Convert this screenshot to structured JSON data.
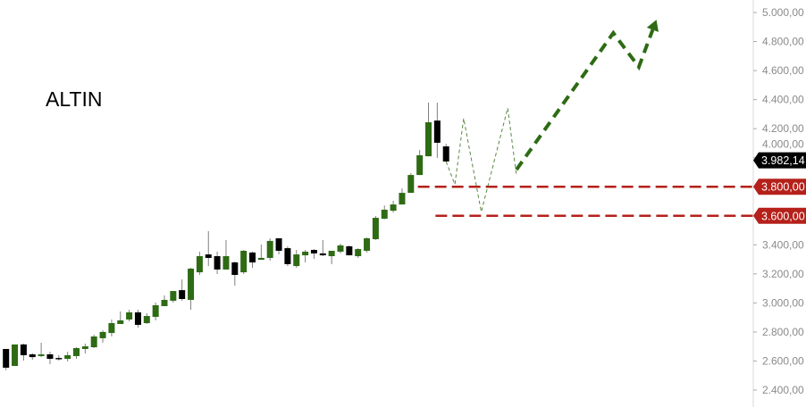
{
  "chart_data": {
    "type": "candlestick",
    "title": "ALTIN",
    "xlabel": "",
    "ylabel": "",
    "ylim": [
      2400,
      5000
    ],
    "y_ticks": [
      "2.400,00",
      "2.600,00",
      "2.800,00",
      "3.000,00",
      "3.200,00",
      "3.400,00",
      "3.600,00",
      "3.800,00",
      "4.000,00",
      "4.200,00",
      "4.400,00",
      "4.600,00",
      "4.800,00",
      "5.000,00"
    ],
    "y_tick_values": [
      2400,
      2600,
      2800,
      3000,
      3200,
      3400,
      3600,
      3800,
      4000,
      4200,
      4400,
      4600,
      4800,
      5000
    ],
    "grid": false,
    "colors": {
      "up": "#2e6b14",
      "down": "#000000",
      "wick": "#808080",
      "level": "#b5201a",
      "last": "#000000",
      "projection": "#2e6b14"
    },
    "candles": [
      [
        2683,
        2683,
        2537,
        2554
      ],
      [
        2566,
        2714,
        2566,
        2714
      ],
      [
        2714,
        2720,
        2603,
        2640
      ],
      [
        2646,
        2654,
        2609,
        2627
      ],
      [
        2634,
        2726,
        2627,
        2646
      ],
      [
        2646,
        2664,
        2578,
        2615
      ],
      [
        2621,
        2640,
        2603,
        2615
      ],
      [
        2615,
        2664,
        2597,
        2640
      ],
      [
        2634,
        2695,
        2615,
        2689
      ],
      [
        2683,
        2720,
        2652,
        2701
      ],
      [
        2695,
        2781,
        2689,
        2769
      ],
      [
        2757,
        2812,
        2726,
        2800
      ],
      [
        2793,
        2886,
        2769,
        2861
      ],
      [
        2855,
        2941,
        2855,
        2880
      ],
      [
        2886,
        2953,
        2873,
        2935
      ],
      [
        2935,
        2953,
        2830,
        2849
      ],
      [
        2861,
        2929,
        2855,
        2910
      ],
      [
        2904,
        3002,
        2880,
        2984
      ],
      [
        2978,
        3052,
        2978,
        3021
      ],
      [
        3015,
        3082,
        3002,
        3082
      ],
      [
        3088,
        3162,
        3015,
        3027
      ],
      [
        3021,
        3242,
        2953,
        3236
      ],
      [
        3211,
        3353,
        3193,
        3322
      ],
      [
        3334,
        3494,
        3254,
        3310
      ],
      [
        3322,
        3353,
        3199,
        3230
      ],
      [
        3230,
        3433,
        3230,
        3322
      ],
      [
        3279,
        3285,
        3119,
        3193
      ],
      [
        3211,
        3365,
        3199,
        3359
      ],
      [
        3347,
        3353,
        3242,
        3279
      ],
      [
        3297,
        3402,
        3297,
        3310
      ],
      [
        3310,
        3445,
        3291,
        3427
      ],
      [
        3445,
        3445,
        3334,
        3359
      ],
      [
        3377,
        3390,
        3254,
        3267
      ],
      [
        3254,
        3365,
        3242,
        3334
      ],
      [
        3328,
        3365,
        3279,
        3353
      ],
      [
        3365,
        3371,
        3304,
        3341
      ],
      [
        3341,
        3433,
        3322,
        3328
      ],
      [
        3322,
        3359,
        3267,
        3359
      ],
      [
        3353,
        3408,
        3341,
        3396
      ],
      [
        3390,
        3396,
        3328,
        3328
      ],
      [
        3322,
        3377,
        3310,
        3371
      ],
      [
        3359,
        3451,
        3347,
        3445
      ],
      [
        3439,
        3599,
        3433,
        3586
      ],
      [
        3580,
        3671,
        3576,
        3642
      ],
      [
        3635,
        3703,
        3623,
        3678
      ],
      [
        3678,
        3789,
        3678,
        3758
      ],
      [
        3758,
        3894,
        3758,
        3881
      ],
      [
        3881,
        4053,
        3881,
        4017
      ],
      [
        4010,
        4379,
        4010,
        4244
      ],
      [
        4256,
        4379,
        3998,
        4103
      ],
      [
        4078,
        4096,
        3974,
        3974
      ]
    ],
    "candle_fields": [
      "open",
      "high",
      "low",
      "close"
    ],
    "last_price": {
      "value": 3982.14,
      "label": "3.982,14"
    },
    "levels": [
      {
        "value": 3800,
        "label": "3.800,00",
        "from_bar": 48
      },
      {
        "value": 3600,
        "label": "3.600,00",
        "from_bar": 50
      }
    ],
    "projection_thin": [
      [
        51,
        3974
      ],
      [
        52,
        3816
      ],
      [
        53,
        4271
      ],
      [
        55,
        3627
      ],
      [
        58,
        4342
      ],
      [
        59,
        3877
      ]
    ],
    "projection_thick": [
      [
        59,
        3918
      ],
      [
        70,
        4859
      ],
      [
        72.9,
        4625
      ],
      [
        74.9,
        4950
      ]
    ]
  }
}
